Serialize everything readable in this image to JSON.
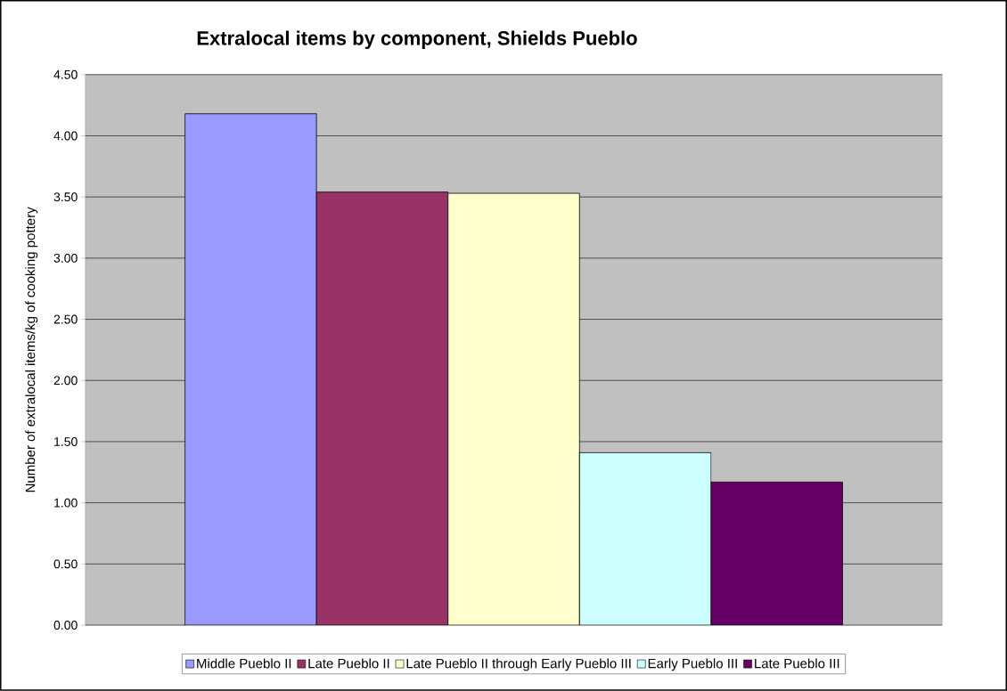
{
  "chart_data": {
    "type": "bar",
    "title": "Extralocal items by component, Shields Pueblo",
    "ylabel": "Number of extralocal items/kg of cooking pottery",
    "categories": [
      null
    ],
    "series": [
      {
        "name": "Middle Pueblo II",
        "color": "#9999ff",
        "values": [
          4.18
        ]
      },
      {
        "name": "Late Pueblo II",
        "color": "#993366",
        "values": [
          3.54
        ]
      },
      {
        "name": "Late Pueblo II through Early Pueblo III",
        "color": "#ffffcc",
        "values": [
          3.53
        ]
      },
      {
        "name": "Early Pueblo III",
        "color": "#ccffff",
        "values": [
          1.41
        ]
      },
      {
        "name": "Late Pueblo III",
        "color": "#660066",
        "values": [
          1.17
        ]
      }
    ],
    "ylim": [
      0,
      4.5
    ],
    "yticks": [
      {
        "value": 0,
        "label": "0.00"
      },
      {
        "value": 0.5,
        "label": "0.50"
      },
      {
        "value": 1,
        "label": "1.00"
      },
      {
        "value": 1.5,
        "label": "1.50"
      },
      {
        "value": 2,
        "label": "2.00"
      },
      {
        "value": 2.5,
        "label": "2.50"
      },
      {
        "value": 3,
        "label": "3.00"
      },
      {
        "value": 3.5,
        "label": "3.50"
      },
      {
        "value": 4,
        "label": "4.00"
      },
      {
        "value": 4.5,
        "label": "4.50"
      }
    ],
    "grid": "y",
    "legend": "bottom"
  }
}
